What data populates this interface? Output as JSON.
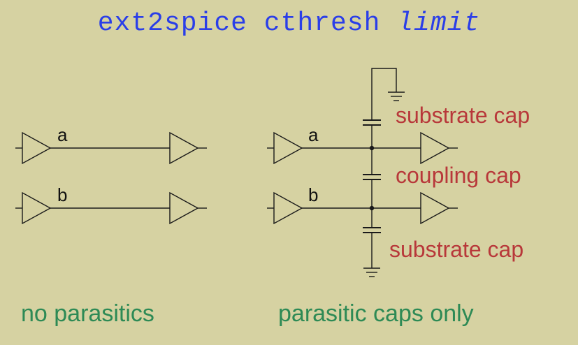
{
  "title": {
    "command": "ext2spice cthresh",
    "argument": "limit"
  },
  "left_diagram": {
    "net_a": "a",
    "net_b": "b",
    "caption": "no parasitics"
  },
  "right_diagram": {
    "net_a": "a",
    "net_b": "b",
    "top_cap_label": "substrate cap",
    "coupling_cap_label": "coupling cap",
    "bottom_cap_label": "substrate cap",
    "caption": "parasitic caps only"
  },
  "colors": {
    "background": "#d6d2a2",
    "title": "#2a3ee8",
    "cap_labels": "#b8383a",
    "captions": "#2d8a55",
    "lines": "#1a1a1a"
  }
}
